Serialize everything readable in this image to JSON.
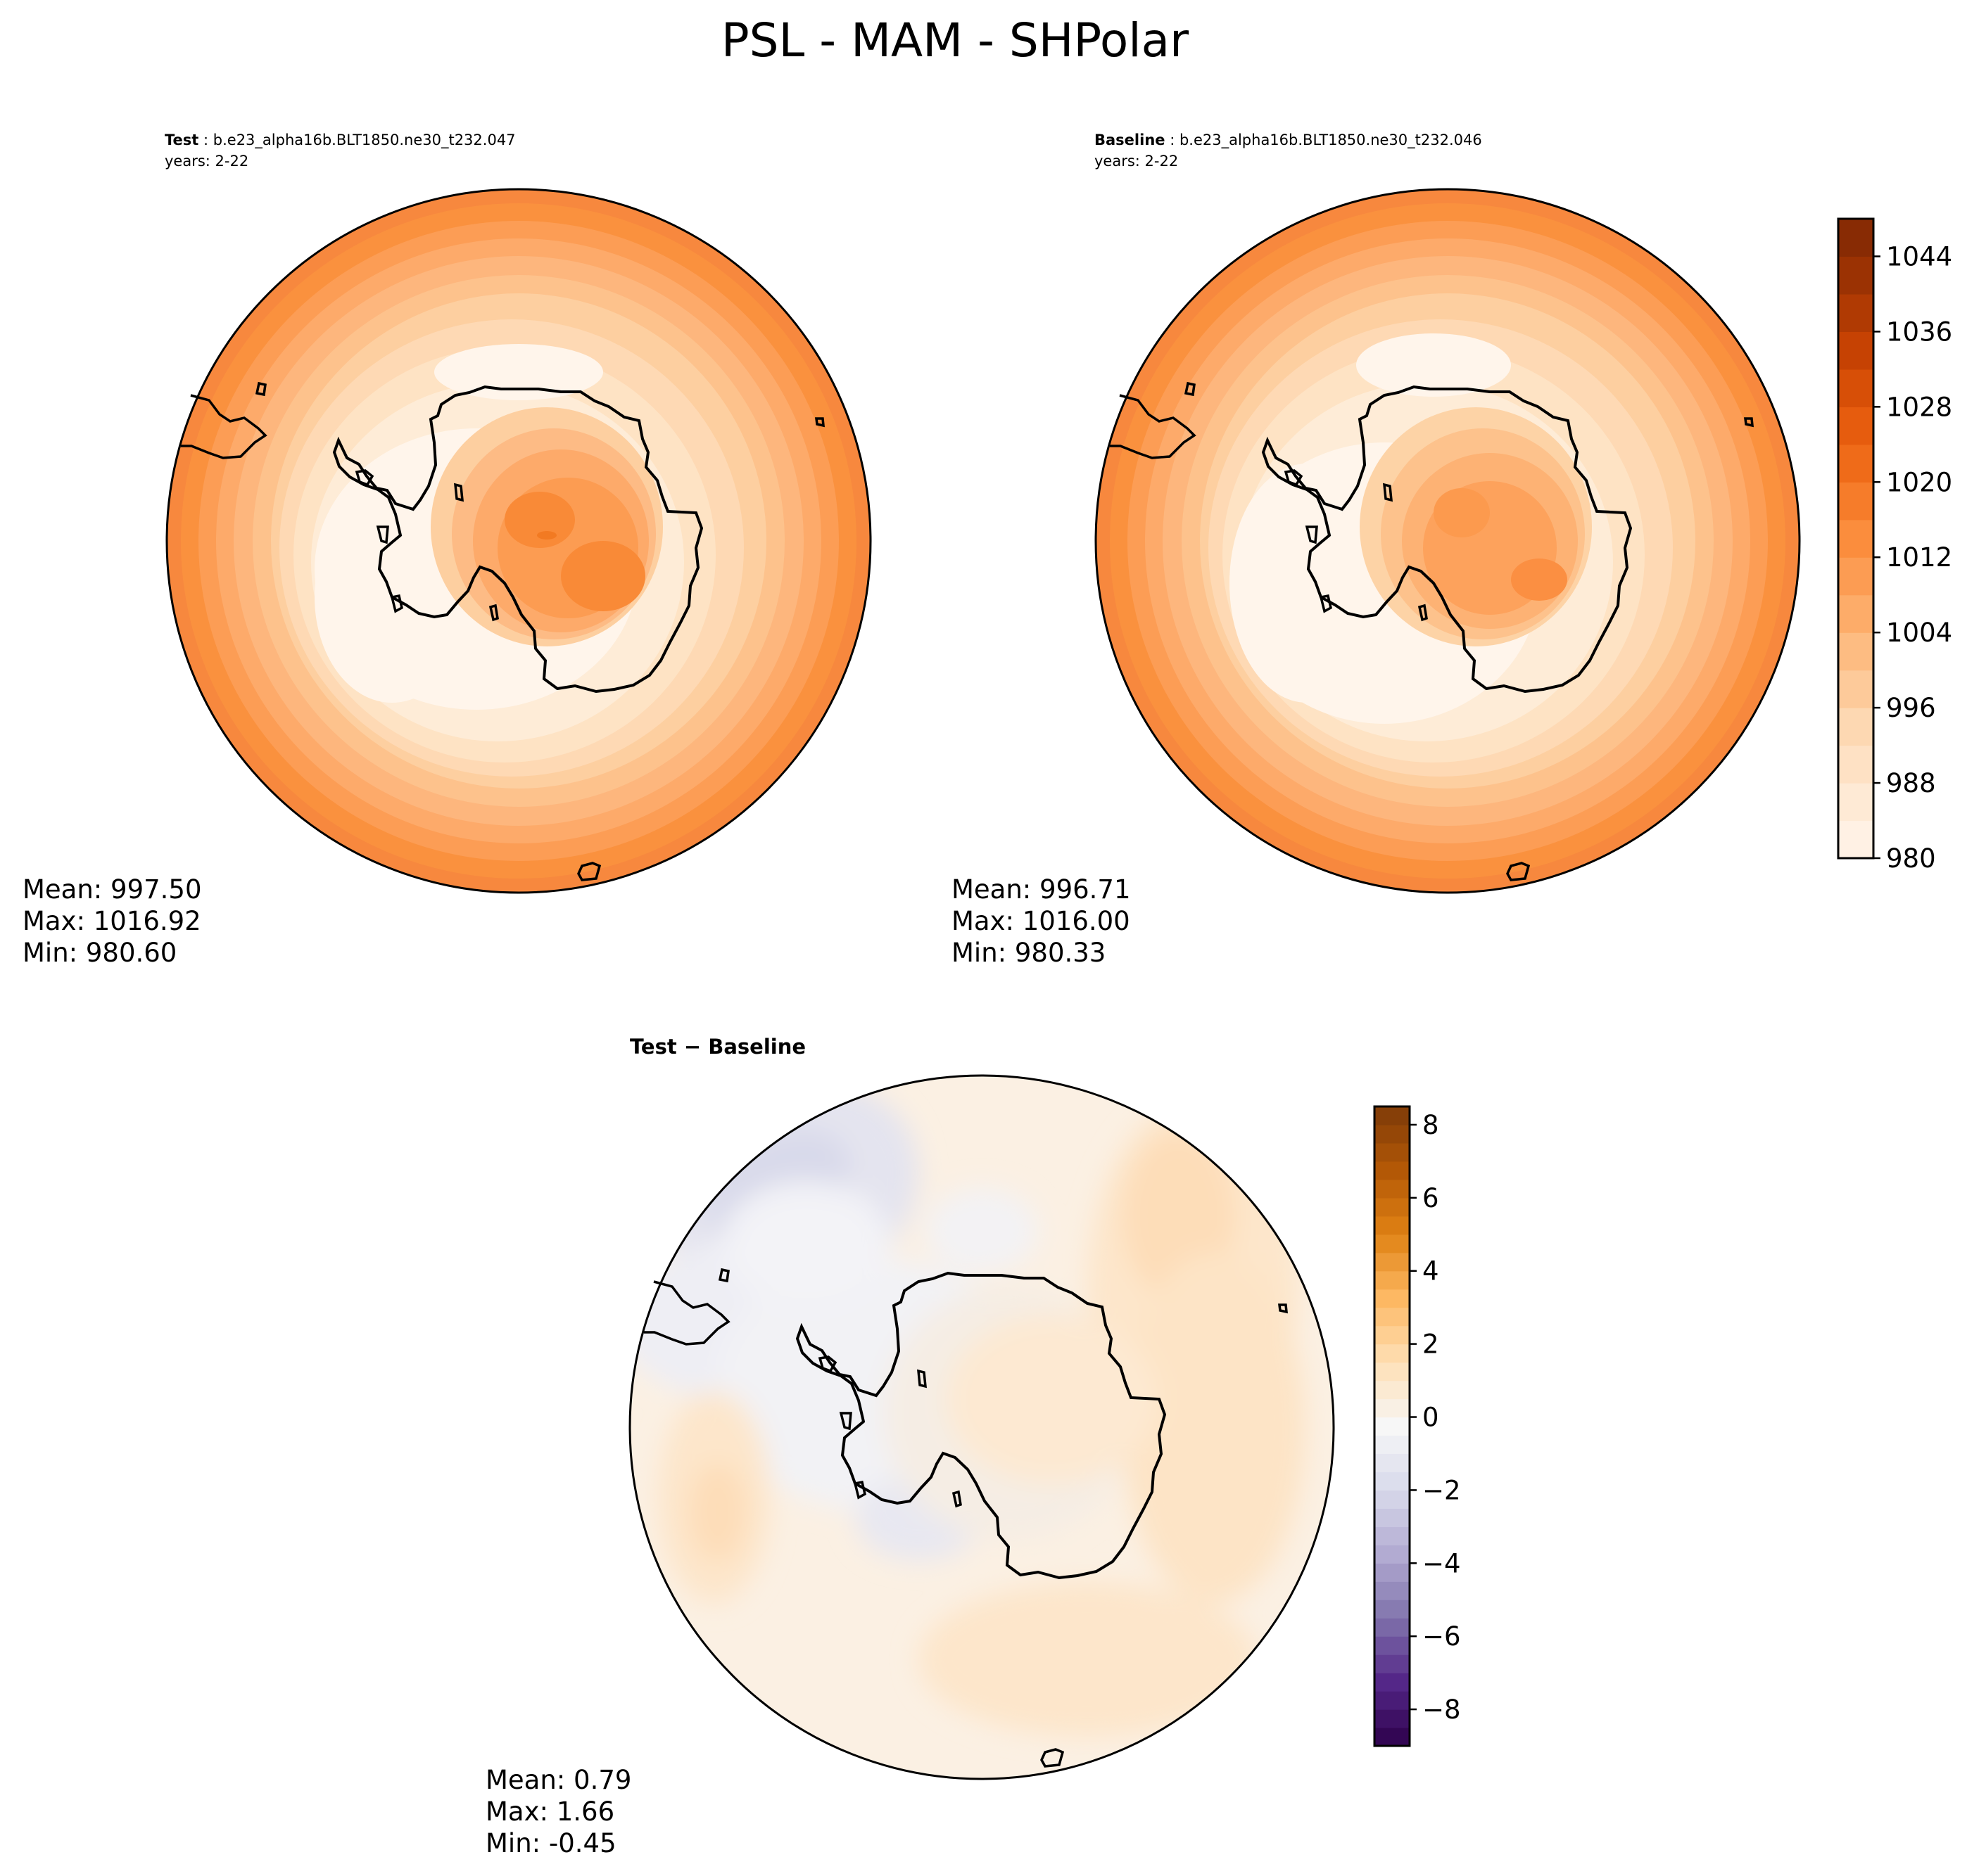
{
  "figure_title": "PSL - MAM - SHPolar",
  "panels": {
    "test": {
      "label_bold": "Test",
      "label_rest": ": b.e23_alpha16b.BLT1850.ne30_t232.047",
      "years": "years: 2-22",
      "stats": {
        "mean": "Mean: 997.50",
        "max": "Max: 1016.92",
        "min": "Min: 980.60"
      }
    },
    "baseline": {
      "label_bold": "Baseline",
      "label_rest": ": b.e23_alpha16b.BLT1850.ne30_t232.046",
      "years": "years: 2-22",
      "stats": {
        "mean": "Mean: 996.71",
        "max": "Max: 1016.00",
        "min": "Min: 980.33"
      }
    },
    "diff": {
      "label": "Test − Baseline",
      "stats": {
        "mean": "Mean:  0.79",
        "max": "Max:  1.66",
        "min": "Min: -0.45"
      }
    }
  },
  "colorbars": {
    "main": {
      "min": 980,
      "max": 1048,
      "step": 4,
      "ticks": [
        980,
        988,
        996,
        1004,
        1012,
        1020,
        1028,
        1036,
        1044
      ],
      "tick_labels": [
        "980",
        "988",
        "996",
        "1004",
        "1012",
        "1020",
        "1028",
        "1036",
        "1044"
      ],
      "colors": [
        "#fff5eb",
        "#fee8d2",
        "#fdd9b4",
        "#fdc28c",
        "#fda762",
        "#fb8d3d",
        "#f2701d",
        "#e25609",
        "#c44103",
        "#9f3303",
        "#7f2704"
      ]
    },
    "diff": {
      "min": -9,
      "max": 8.5,
      "step": 0.5,
      "ticks": [
        -8,
        -6,
        -4,
        -2,
        0,
        2,
        4,
        6,
        8
      ],
      "tick_labels": [
        "−8",
        "−6",
        "−4",
        "−2",
        "0",
        "2",
        "4",
        "6",
        "8"
      ],
      "colors": [
        "#2d004b",
        "#542788",
        "#8073ac",
        "#b2abd2",
        "#d8daeb",
        "#f7f7f7",
        "#fee0b6",
        "#fdb863",
        "#e08214",
        "#b35806",
        "#7f3b08"
      ]
    }
  },
  "chart_data": [
    {
      "type": "heatmap",
      "title": "Test : b.e23_alpha16b.BLT1850.ne30_t232.047",
      "variable": "PSL",
      "season": "MAM",
      "region": "SHPolar",
      "color_range": [
        980,
        1048
      ],
      "stats": {
        "mean": 997.5,
        "max": 1016.92,
        "min": 980.6
      }
    },
    {
      "type": "heatmap",
      "title": "Baseline : b.e23_alpha16b.BLT1850.ne30_t232.046",
      "variable": "PSL",
      "season": "MAM",
      "region": "SHPolar",
      "color_range": [
        980,
        1048
      ],
      "stats": {
        "mean": 996.71,
        "max": 1016.0,
        "min": 980.33
      }
    },
    {
      "type": "heatmap",
      "title": "Test - Baseline",
      "variable": "PSL",
      "season": "MAM",
      "region": "SHPolar",
      "color_range": [
        -9,
        8.5
      ],
      "stats": {
        "mean": 0.79,
        "max": 1.66,
        "min": -0.45
      }
    }
  ]
}
